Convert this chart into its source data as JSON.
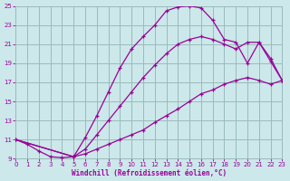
{
  "xlabel": "Windchill (Refroidissement éolien,°C)",
  "bg_color": "#cce8ea",
  "grid_color": "#99bbbb",
  "line_color": "#990099",
  "xmin": 0,
  "xmax": 23,
  "ymin": 9,
  "ymax": 25,
  "yticks": [
    9,
    11,
    13,
    15,
    17,
    19,
    21,
    23,
    25
  ],
  "xticks": [
    0,
    1,
    2,
    3,
    4,
    5,
    6,
    7,
    8,
    9,
    10,
    11,
    12,
    13,
    14,
    15,
    16,
    17,
    18,
    19,
    20,
    21,
    22,
    23
  ],
  "curve1_x": [
    0,
    1,
    2,
    3,
    4,
    5,
    6,
    7,
    8,
    9,
    10,
    11,
    12,
    13,
    14,
    15,
    16,
    17,
    18,
    19,
    20,
    21,
    22,
    23
  ],
  "curve1_y": [
    11,
    10.5,
    9.8,
    9.2,
    9.1,
    9.2,
    11.2,
    13.5,
    16.0,
    18.5,
    20.5,
    21.8,
    23.0,
    24.5,
    24.9,
    25.0,
    24.8,
    23.5,
    21.5,
    21.2,
    19.0,
    21.2,
    19.2,
    17.2
  ],
  "curve2_x": [
    0,
    5,
    6,
    7,
    8,
    9,
    10,
    11,
    12,
    13,
    14,
    15,
    16,
    17,
    18,
    19,
    20,
    21,
    22,
    23
  ],
  "curve2_y": [
    11,
    9.2,
    10.0,
    11.5,
    13.0,
    14.5,
    16.0,
    17.5,
    18.8,
    20.0,
    21.0,
    21.5,
    21.8,
    21.5,
    21.0,
    20.5,
    21.2,
    21.2,
    19.5,
    17.2
  ],
  "curve3_x": [
    0,
    5,
    6,
    7,
    8,
    9,
    10,
    11,
    12,
    13,
    14,
    15,
    16,
    17,
    18,
    19,
    20,
    21,
    22,
    23
  ],
  "curve3_y": [
    11,
    9.2,
    9.5,
    10.0,
    10.5,
    11.0,
    11.5,
    12.0,
    12.8,
    13.5,
    14.2,
    15.0,
    15.8,
    16.2,
    16.8,
    17.2,
    17.5,
    17.2,
    16.8,
    17.2
  ]
}
